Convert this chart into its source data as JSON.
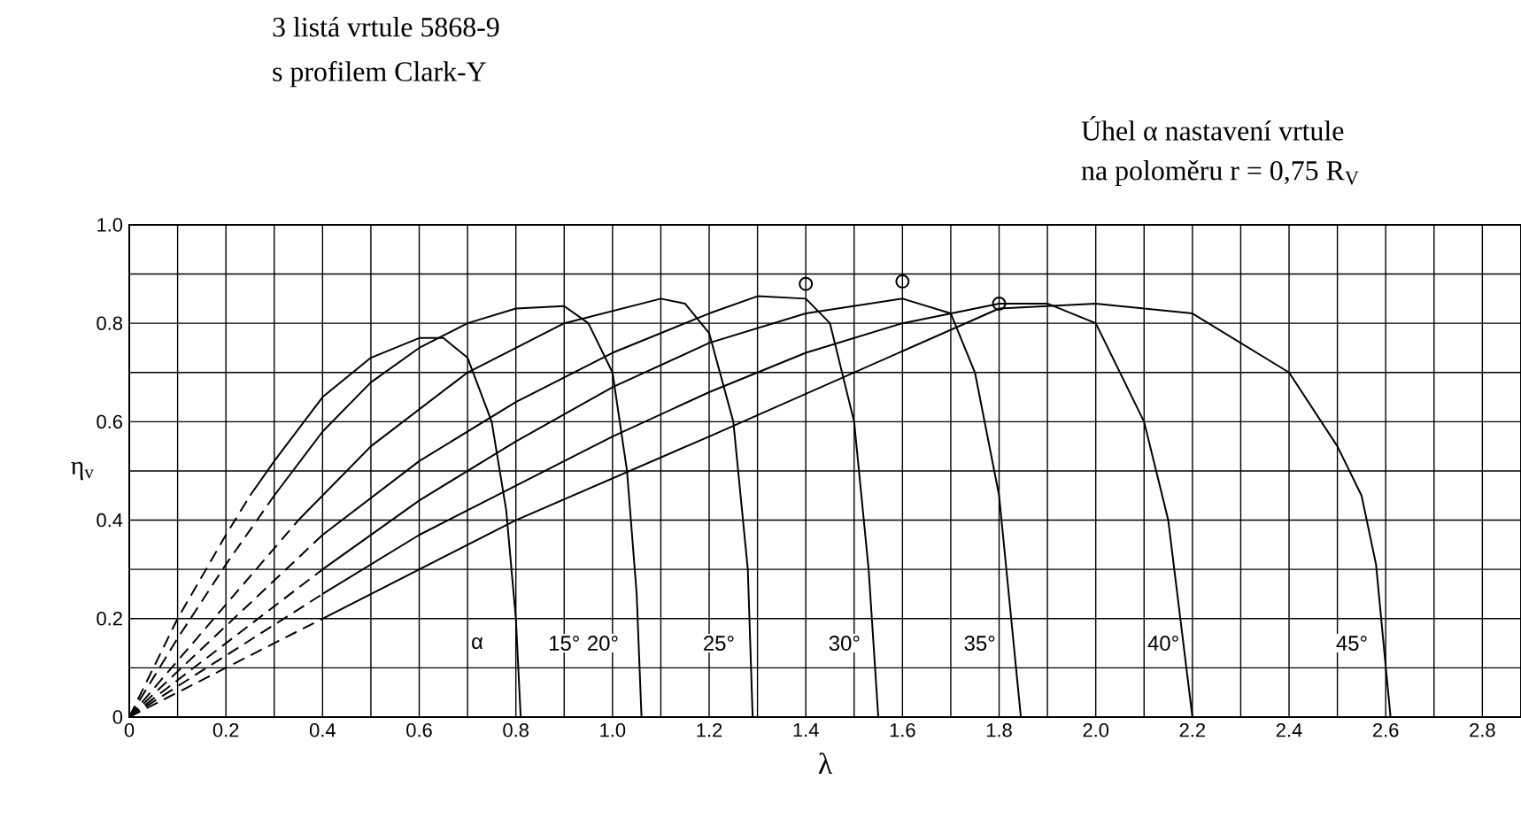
{
  "chart_data": {
    "type": "line",
    "title": "3 listá vrtule 5868-9",
    "subtitle": "s profilem Clark-Y",
    "xlabel": "λ",
    "ylabel": "η$_{v}$",
    "xlim": [
      0,
      2.88
    ],
    "ylim": [
      0,
      1
    ],
    "xticks": [
      0,
      {
        "value": 0.1,
        "label": null
      },
      0.2,
      {
        "value": 0.3,
        "label": null
      },
      0.4,
      {
        "value": 0.5,
        "label": null
      },
      0.6,
      {
        "value": 0.7,
        "label": null
      },
      0.8,
      {
        "value": 0.9,
        "label": null
      },
      {
        "value": 1,
        "label": "1.0"
      },
      {
        "value": 1.1,
        "label": null
      },
      1.2,
      {
        "value": 1.3,
        "label": null
      },
      1.4,
      {
        "value": 1.5,
        "label": null
      },
      1.6,
      {
        "value": 1.7,
        "label": null
      },
      1.8,
      {
        "value": 1.9,
        "label": null
      },
      {
        "value": 2,
        "label": "2.0"
      },
      {
        "value": 2.1,
        "label": null
      },
      2.2,
      {
        "value": 2.3,
        "label": null
      },
      2.4,
      {
        "value": 2.5,
        "label": null
      },
      2.6,
      {
        "value": 2.7,
        "label": null
      },
      2.8
    ],
    "yticks": [
      0,
      {
        "value": 0.1,
        "label": null
      },
      0.2,
      {
        "value": 0.3,
        "label": null
      },
      0.4,
      {
        "value": 0.5,
        "label": null
      },
      0.6,
      {
        "value": 0.7,
        "label": null
      },
      0.8,
      {
        "value": 0.9,
        "label": null
      },
      {
        "value": 1,
        "label": "1.0"
      }
    ],
    "grid": true,
    "series": [
      {
        "color": "#000000",
        "line_style": "dashed",
        "x": [
          0,
          0.1,
          0.2,
          0.25
        ],
        "values": [
          0,
          0.2,
          0.37,
          0.45
        ]
      },
      {
        "color": "#000000",
        "line_style": "solid",
        "x": [
          0.25,
          0.3,
          0.4,
          0.5,
          0.6,
          0.65,
          0.7,
          0.75,
          0.78,
          0.8,
          0.81
        ],
        "values": [
          0.45,
          0.52,
          0.65,
          0.73,
          0.77,
          0.77,
          0.73,
          0.6,
          0.42,
          0.2,
          0
        ]
      },
      {
        "color": "#000000",
        "line_style": "dashed",
        "x": [
          0,
          0.1,
          0.2,
          0.3
        ],
        "values": [
          0,
          0.16,
          0.31,
          0.45
        ]
      },
      {
        "color": "#000000",
        "line_style": "solid",
        "x": [
          0.3,
          0.4,
          0.5,
          0.6,
          0.7,
          0.8,
          0.9,
          0.95,
          1.0,
          1.03,
          1.05,
          1.06
        ],
        "values": [
          0.45,
          0.58,
          0.68,
          0.75,
          0.8,
          0.83,
          0.835,
          0.8,
          0.7,
          0.5,
          0.25,
          0
        ]
      },
      {
        "color": "#000000",
        "line_style": "dashed",
        "x": [
          0,
          0.35
        ],
        "values": [
          0,
          0.4
        ]
      },
      {
        "color": "#000000",
        "line_style": "solid",
        "x": [
          0.35,
          0.5,
          0.7,
          0.9,
          1.1,
          1.15,
          1.2,
          1.25,
          1.28,
          1.29
        ],
        "values": [
          0.4,
          0.55,
          0.7,
          0.8,
          0.85,
          0.84,
          0.78,
          0.6,
          0.3,
          0
        ]
      },
      {
        "color": "#000000",
        "line_style": "dashed",
        "x": [
          0,
          0.4
        ],
        "values": [
          0,
          0.37
        ]
      },
      {
        "color": "#000000",
        "line_style": "solid",
        "x": [
          0.4,
          0.6,
          0.8,
          1.0,
          1.2,
          1.3,
          1.4,
          1.45,
          1.5,
          1.53,
          1.55
        ],
        "values": [
          0.37,
          0.52,
          0.64,
          0.74,
          0.82,
          0.855,
          0.85,
          0.8,
          0.6,
          0.3,
          0
        ]
      },
      {
        "color": "#000000",
        "line_style": "dashed",
        "x": [
          0,
          0.4
        ],
        "values": [
          0,
          0.3
        ]
      },
      {
        "color": "#000000",
        "line_style": "solid",
        "x": [
          0.4,
          0.6,
          0.8,
          1.0,
          1.2,
          1.4,
          1.6,
          1.7,
          1.75,
          1.8,
          1.83,
          1.845
        ],
        "values": [
          0.3,
          0.44,
          0.56,
          0.67,
          0.76,
          0.82,
          0.85,
          0.82,
          0.7,
          0.45,
          0.15,
          0
        ]
      },
      {
        "color": "#000000",
        "line_style": "dashed",
        "x": [
          0,
          0.4
        ],
        "values": [
          0,
          0.25
        ]
      },
      {
        "color": "#000000",
        "line_style": "solid",
        "x": [
          0.4,
          0.6,
          0.8,
          1.0,
          1.2,
          1.4,
          1.6,
          1.8,
          1.9,
          2.0,
          2.1,
          2.15,
          2.2
        ],
        "values": [
          0.25,
          0.37,
          0.47,
          0.57,
          0.66,
          0.74,
          0.8,
          0.84,
          0.84,
          0.8,
          0.6,
          0.4,
          0
        ]
      },
      {
        "color": "#000000",
        "line_style": "dashed",
        "x": [
          0,
          0.4
        ],
        "values": [
          0,
          0.2
        ]
      },
      {
        "color": "#000000",
        "line_style": "solid",
        "x": [
          0.4,
          0.8,
          1.2,
          1.5,
          1.8,
          2.0,
          2.2,
          2.4,
          2.5,
          2.55,
          2.58,
          2.61
        ],
        "values": [
          0.2,
          0.4,
          0.57,
          0.7,
          0.83,
          0.84,
          0.82,
          0.7,
          0.55,
          0.45,
          0.31,
          0
        ]
      },
      {
        "type": "scatter",
        "marker": "circle",
        "color": "#000000",
        "x": [
          1.4,
          1.6,
          1.8
        ],
        "values": [
          0.88,
          0.885,
          0.84
        ]
      }
    ],
    "annotations": [
      {
        "text": "α",
        "x": 0.72,
        "y": 0.15
      },
      {
        "text": "15°",
        "x": 0.9,
        "y": 0.15
      },
      {
        "text": "20°",
        "x": 0.98,
        "y": 0.15
      },
      {
        "text": "25°",
        "x": 1.22,
        "y": 0.15
      },
      {
        "text": "30°",
        "x": 1.48,
        "y": 0.15
      },
      {
        "text": "35°",
        "x": 1.76,
        "y": 0.15
      },
      {
        "text": "40°",
        "x": 2.14,
        "y": 0.15
      },
      {
        "text": "45°",
        "x": 2.53,
        "y": 0.15
      },
      "Úhel α nastavení vrtule",
      "na poloměru r = 0,75 R$_{V}$"
    ]
  }
}
